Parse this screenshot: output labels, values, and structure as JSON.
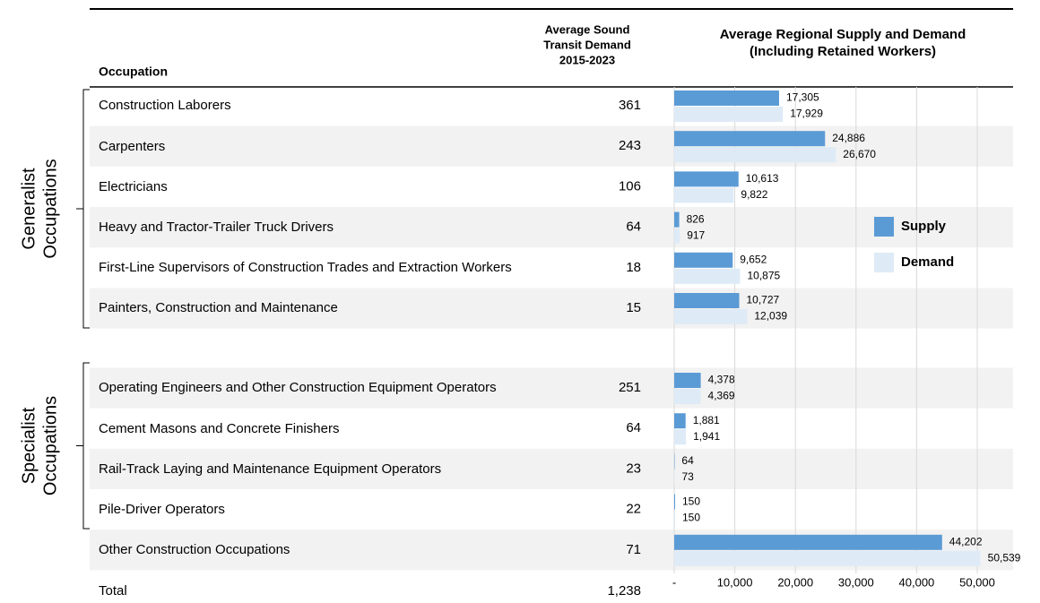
{
  "chart_data": {
    "type": "bar",
    "orientation": "horizontal",
    "title": [
      "Average Regional Supply and Demand",
      "(Including Retained Workers)"
    ],
    "column_headers": {
      "occupation": "Occupation",
      "transit_demand": [
        "Average Sound",
        "Transit Demand",
        "2015-2023"
      ]
    },
    "groups": [
      {
        "lines": [
          "Generalist",
          "Occupations"
        ]
      },
      {
        "lines": [
          "Specialist",
          "Occupations"
        ]
      }
    ],
    "categories": [
      "Construction Laborers",
      "Carpenters",
      "Electricians",
      "Heavy and Tractor-Trailer Truck Drivers",
      "First-Line Supervisors of Construction Trades and Extraction Workers",
      "Painters, Construction and Maintenance",
      "Operating Engineers and Other Construction Equipment Operators",
      "Cement Masons and Concrete Finishers",
      "Rail-Track Laying and Maintenance Equipment Operators",
      "Pile-Driver Operators",
      "Other Construction Occupations"
    ],
    "transit_demand": [
      361,
      243,
      106,
      64,
      18,
      15,
      251,
      64,
      23,
      22,
      71
    ],
    "total_label": "Total",
    "total_value": 1238,
    "total_value_label": "1,238",
    "series": [
      {
        "name": "Supply",
        "color": "#5b9bd5",
        "values": [
          17305,
          24886,
          10613,
          826,
          9652,
          10727,
          4378,
          1881,
          64,
          150,
          44202
        ],
        "value_labels": [
          "17,305",
          "24,886",
          "10,613",
          "826",
          "9,652",
          "10,727",
          "4,378",
          "1,881",
          "64",
          "150",
          "44,202"
        ]
      },
      {
        "name": "Demand",
        "color": "#deebf7",
        "values": [
          17929,
          26670,
          9822,
          917,
          10875,
          12039,
          4369,
          1941,
          73,
          150,
          50539
        ],
        "value_labels": [
          "17,929",
          "26,670",
          "9,822",
          "917",
          "10,875",
          "12,039",
          "4,369",
          "1,941",
          "73",
          "150",
          "50,539"
        ]
      }
    ],
    "xlim": [
      0,
      55000
    ],
    "xticks": [
      {
        "value": 0,
        "label": "-"
      },
      {
        "value": 10000,
        "label": "10,000"
      },
      {
        "value": 20000,
        "label": "20,000"
      },
      {
        "value": 30000,
        "label": "30,000"
      },
      {
        "value": 40000,
        "label": "40,000"
      },
      {
        "value": 50000,
        "label": "50,000"
      }
    ],
    "grid": true,
    "legend": "right"
  }
}
